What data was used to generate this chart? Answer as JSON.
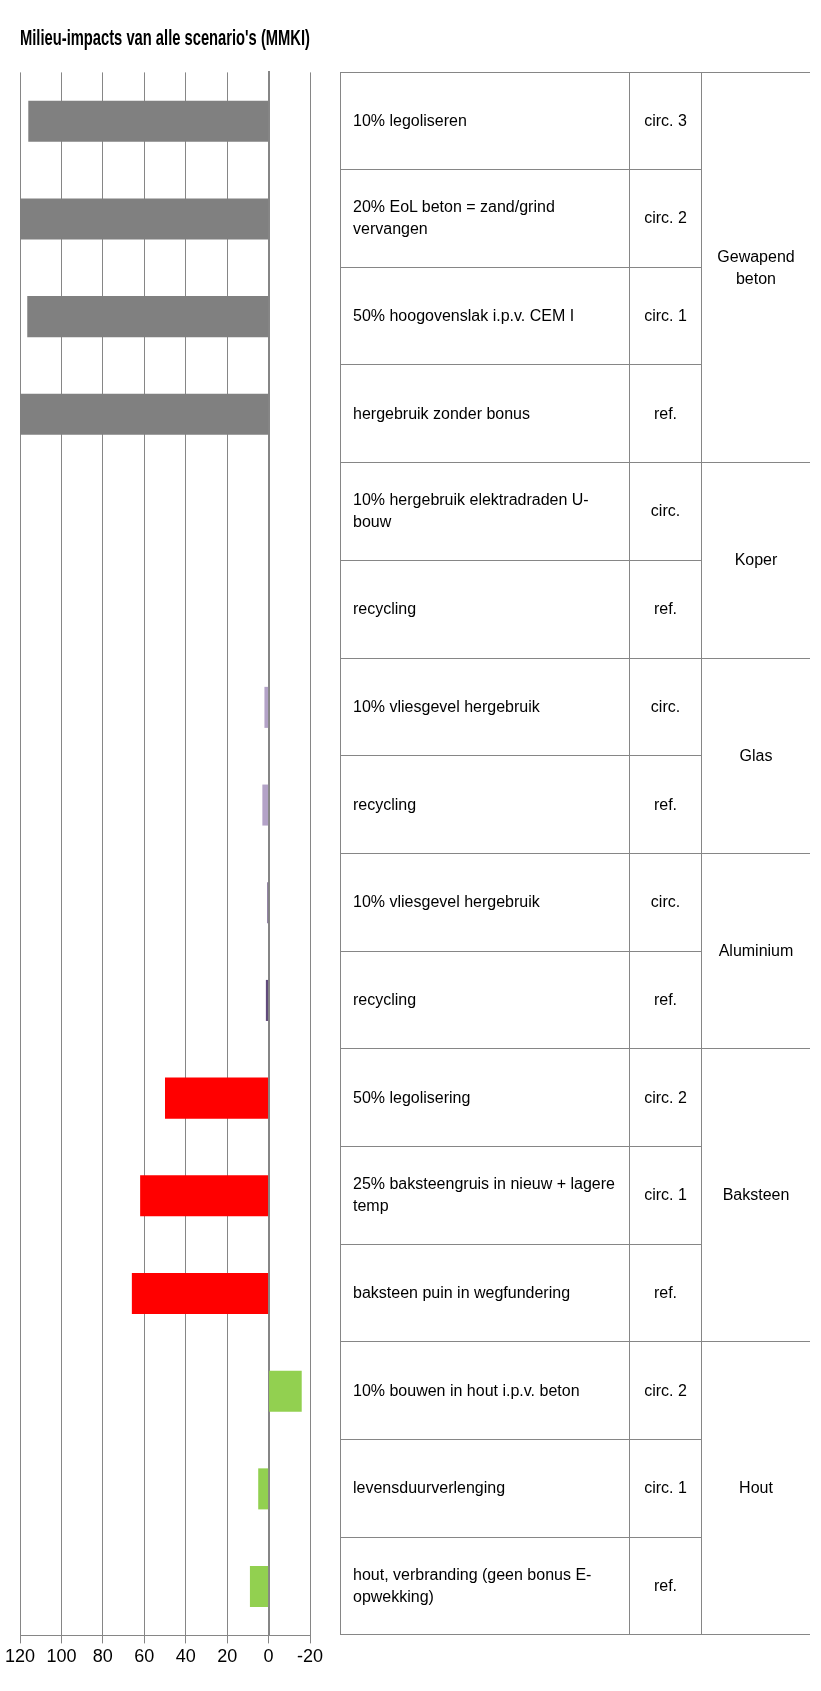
{
  "chart_data": {
    "type": "bar",
    "orientation": "horizontal",
    "title": "Milieu-impacts van alle scenario's (MMKI)",
    "categories": [
      "10% legoliseren",
      "20% EoL beton = zand/grind vervangen",
      "50% hoogovenslak i.p.v. CEM I",
      "hergebruik zonder bonus",
      "10% hergebruik elektradraden U-bouw",
      "recycling",
      "10% vliesgevel hergebruik",
      "recycling",
      "10% vliesgevel hergebruik",
      "recycling",
      "50% legolisering",
      "25% baksteengruis in nieuw + lagere temp",
      "baksteen puin in wegfundering",
      "10% bouwen in hout i.p.v. beton",
      "levensduurverlenging",
      "hout, verbranding (geen bonus E-opwekking)"
    ],
    "values": [
      116,
      120,
      116.5,
      120,
      0,
      0,
      2,
      3,
      0.6,
      1.3,
      50,
      62,
      66,
      -16,
      5,
      9
    ],
    "colors": [
      "#808080",
      "#808080",
      "#808080",
      "#808080",
      "#e46c0a",
      "#e46c0a",
      "#b3a2c7",
      "#b3a2c7",
      "#604a7b",
      "#604a7b",
      "#ff0000",
      "#ff0000",
      "#ff0000",
      "#92d050",
      "#92d050",
      "#92d050"
    ],
    "xlim": [
      120,
      -20
    ],
    "xticks": [
      120,
      100,
      80,
      60,
      40,
      20,
      0,
      -20
    ],
    "grid": "x",
    "annotations": [
      "circ. 3",
      "circ. 2",
      "circ. 1",
      "ref.",
      "circ.",
      "ref.",
      "circ.",
      "ref.",
      "circ.",
      "ref.",
      "circ. 2",
      "circ. 1",
      "ref.",
      "circ. 2",
      "circ. 1",
      "ref.",
      "Gewapend beton",
      "Koper",
      "Glas",
      "Aluminium",
      "Baksteen",
      "Hout"
    ]
  }
}
